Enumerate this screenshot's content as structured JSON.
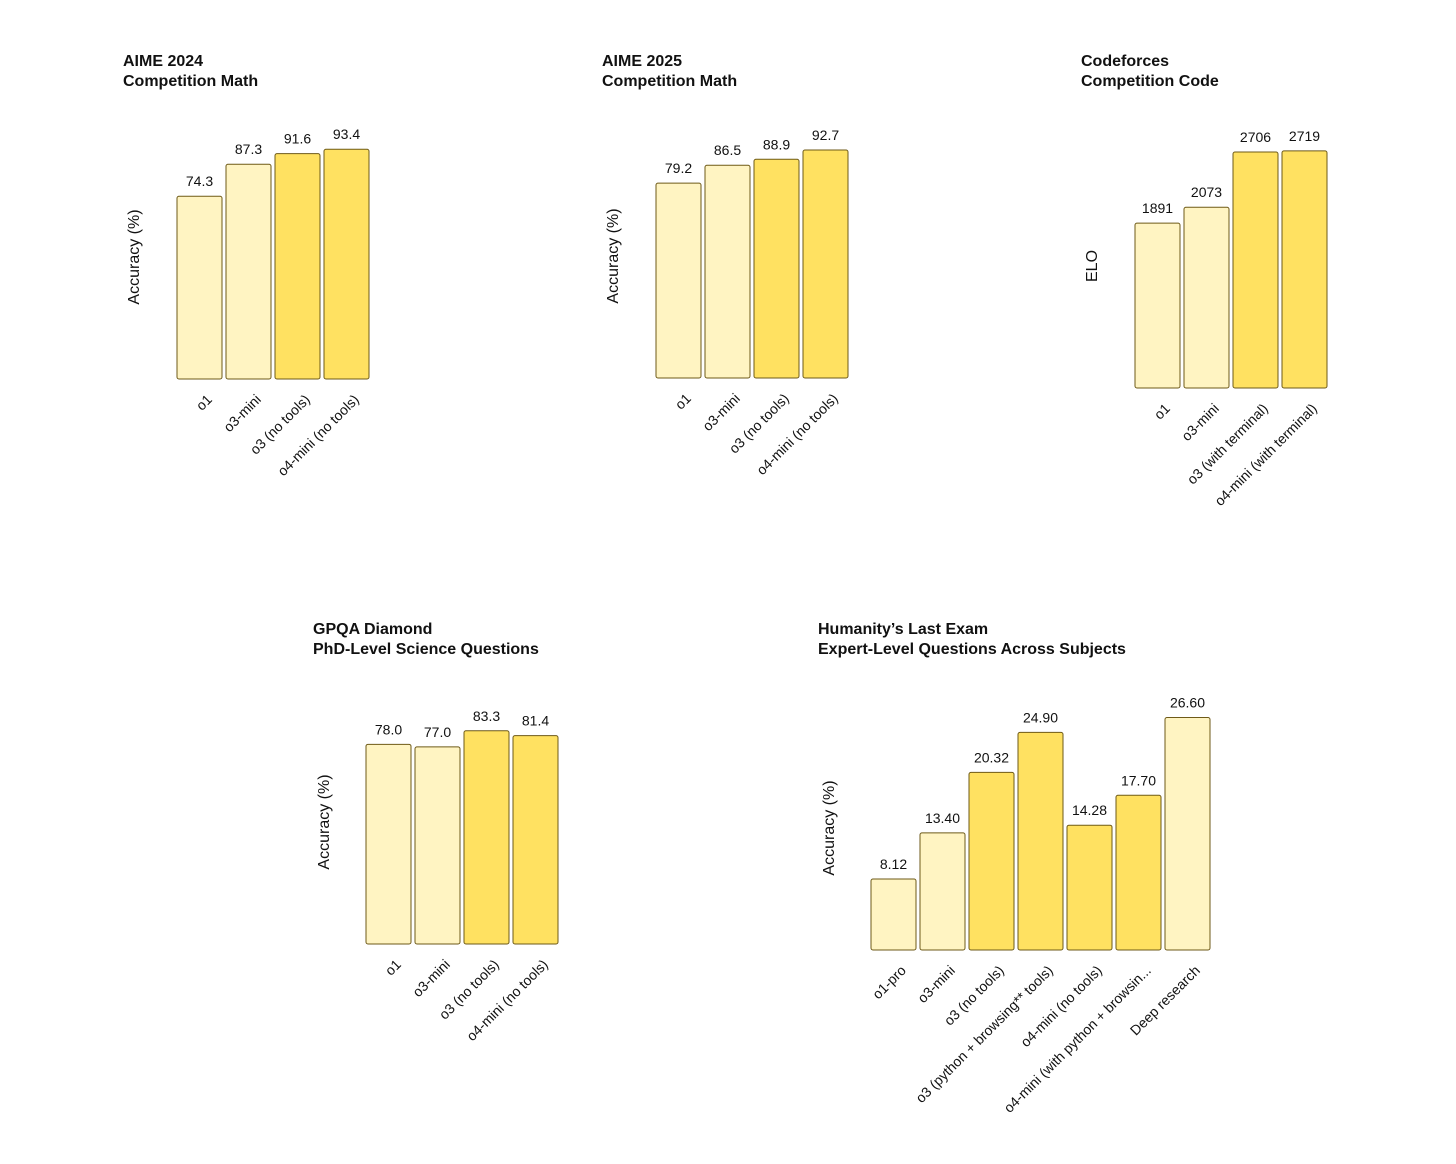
{
  "palette": {
    "light": "#FFF4C2",
    "dark": "#FFE161",
    "stroke": "#6E5A18"
  },
  "chart_data": [
    {
      "type": "bar",
      "title": "AIME 2024",
      "subtitle": "Competition Math",
      "ylabel": "Accuracy (%)",
      "ylim": [
        0,
        100
      ],
      "categories": [
        "o1",
        "o3-mini",
        "o3 (no tools)",
        "o4-mini (no tools)"
      ],
      "values": [
        74.3,
        87.3,
        91.6,
        93.4
      ],
      "value_labels": [
        "74.3",
        "87.3",
        "91.6",
        "93.4"
      ],
      "colors": [
        "light",
        "light",
        "dark",
        "dark"
      ]
    },
    {
      "type": "bar",
      "title": "AIME 2025",
      "subtitle": "Competition Math",
      "ylabel": "Accuracy (%)",
      "ylim": [
        0,
        100
      ],
      "categories": [
        "o1",
        "o3-mini",
        "o3 (no tools)",
        "o4-mini (no tools)"
      ],
      "values": [
        79.2,
        86.5,
        88.9,
        92.7
      ],
      "value_labels": [
        "79.2",
        "86.5",
        "88.9",
        "92.7"
      ],
      "colors": [
        "light",
        "light",
        "dark",
        "dark"
      ]
    },
    {
      "type": "bar",
      "title": "Codeforces",
      "subtitle": "Competition Code",
      "ylabel": "ELO",
      "ylim": [
        0,
        2800
      ],
      "categories": [
        "o1",
        "o3-mini",
        "o3 (with terminal)",
        "o4-mini (with terminal)"
      ],
      "values": [
        1891,
        2073,
        2706,
        2719
      ],
      "value_labels": [
        "1891",
        "2073",
        "2706",
        "2719"
      ],
      "colors": [
        "light",
        "light",
        "dark",
        "dark"
      ]
    },
    {
      "type": "bar",
      "title": "GPQA Diamond",
      "subtitle": "PhD-Level Science Questions",
      "ylabel": "Accuracy (%)",
      "ylim": [
        0,
        100
      ],
      "categories": [
        "o1",
        "o3-mini",
        "o3 (no tools)",
        "o4-mini (no tools)"
      ],
      "values": [
        78.0,
        77.0,
        83.3,
        81.4
      ],
      "value_labels": [
        "78.0",
        "77.0",
        "83.3",
        "81.4"
      ],
      "colors": [
        "light",
        "light",
        "dark",
        "dark"
      ]
    },
    {
      "type": "bar",
      "title": "Humanity’s Last Exam",
      "subtitle": "Expert-Level Questions Across Subjects",
      "ylabel": "Accuracy (%)",
      "ylim": [
        0,
        30
      ],
      "categories": [
        "o1-pro",
        "o3-mini",
        "o3 (no tools)",
        "o3 (python + browsing** tools)",
        "o4-mini (no tools)",
        "o4-mini (with python + browsin...",
        "Deep research"
      ],
      "values": [
        8.12,
        13.4,
        20.32,
        24.9,
        14.28,
        17.7,
        26.6
      ],
      "value_labels": [
        "8.12",
        "13.40",
        "20.32",
        "24.90",
        "14.28",
        "17.70",
        "26.60"
      ],
      "colors": [
        "light",
        "light",
        "dark",
        "dark",
        "dark",
        "dark",
        "light"
      ]
    }
  ]
}
